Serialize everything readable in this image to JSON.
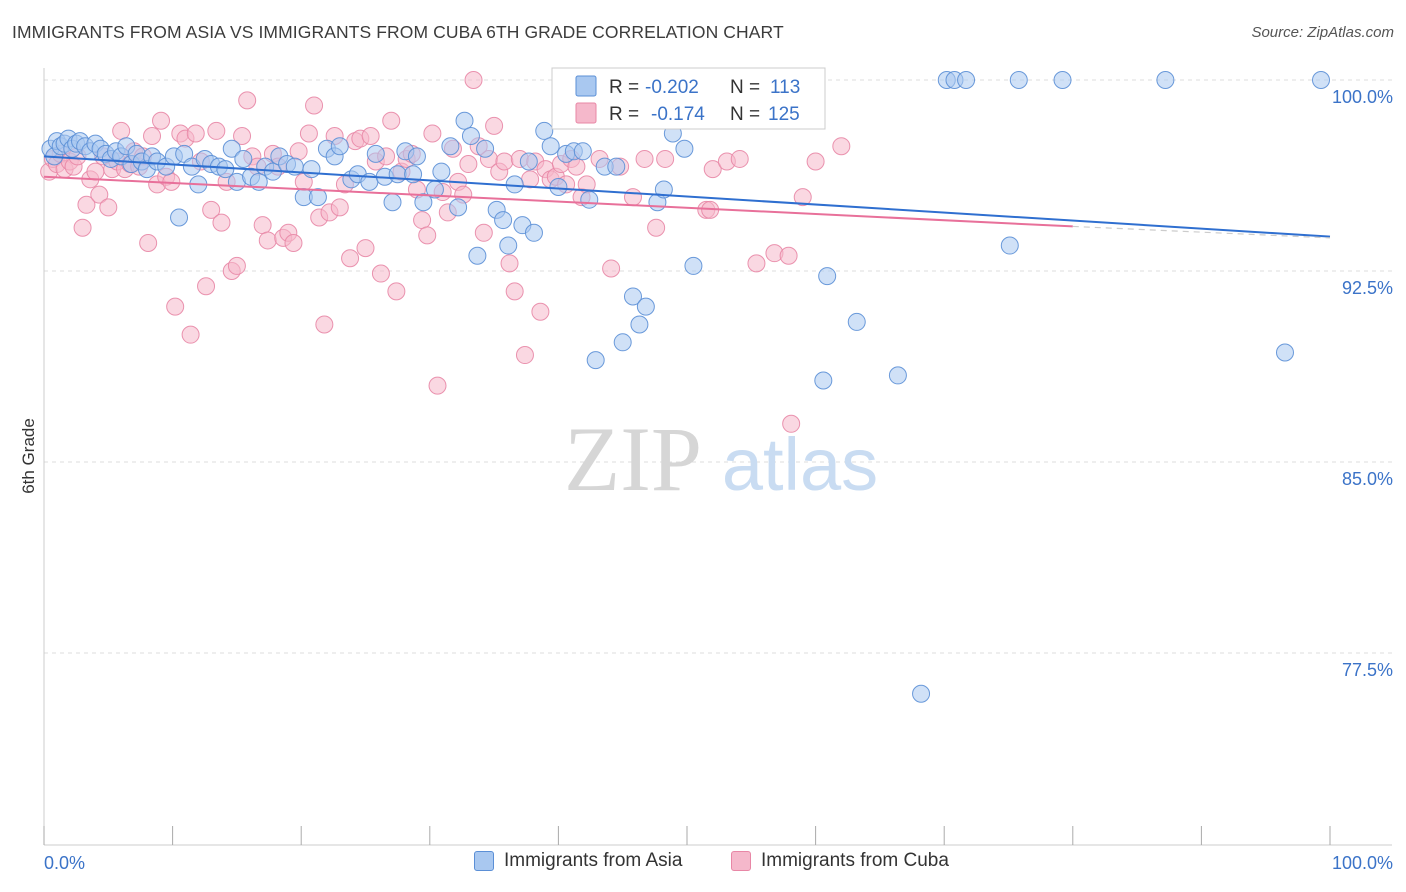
{
  "header": {
    "title": "IMMIGRANTS FROM ASIA VS IMMIGRANTS FROM CUBA 6TH GRADE CORRELATION CHART",
    "source": "Source: ZipAtlas.com"
  },
  "watermark": {
    "zip": "ZIP",
    "atlas": "atlas"
  },
  "stats_box": {
    "asia": {
      "r_label": "R =",
      "r_value": "-0.202",
      "n_label": "N =",
      "n_value": "113"
    },
    "cuba": {
      "r_label": "R =",
      "r_value": "-0.174",
      "n_label": "N =",
      "n_value": "125"
    }
  },
  "colors": {
    "asia_fill": "#a9c8f0",
    "asia_stroke": "#5b8fd6",
    "asia_line": "#2f6fd0",
    "cuba_fill": "#f5b8cb",
    "cuba_stroke": "#e887a6",
    "cuba_line": "#e8709a",
    "value_text": "#3b73c8",
    "grid": "#dddddd"
  },
  "chart_data": {
    "type": "scatter",
    "title": "IMMIGRANTS FROM ASIA VS IMMIGRANTS FROM CUBA 6TH GRADE CORRELATION CHART",
    "xlabel": "",
    "ylabel": "6th Grade",
    "xlim": [
      0,
      100
    ],
    "ylim": [
      71.5,
      101.3
    ],
    "x_tick_labels": [
      "0.0%",
      "100.0%"
    ],
    "y_ticks": [
      100.0,
      92.5,
      85.0,
      77.5
    ],
    "y_tick_labels": [
      "100.0%",
      "92.5%",
      "85.0%",
      "77.5%"
    ],
    "grid": true,
    "legend_position": "bottom",
    "series": [
      {
        "name": "Immigrants from Asia",
        "r": -0.202,
        "n": 113,
        "trend": {
          "x0": 0,
          "y0": 97.0,
          "x1": 100,
          "y1": 93.85
        },
        "points": [
          [
            0.5,
            97.3
          ],
          [
            0.8,
            97.0
          ],
          [
            1.0,
            97.6
          ],
          [
            1.3,
            97.4
          ],
          [
            1.6,
            97.5
          ],
          [
            1.9,
            97.7
          ],
          [
            2.2,
            97.3
          ],
          [
            2.5,
            97.5
          ],
          [
            2.8,
            97.6
          ],
          [
            3.2,
            97.4
          ],
          [
            3.6,
            97.2
          ],
          [
            4.0,
            97.5
          ],
          [
            4.4,
            97.3
          ],
          [
            4.8,
            97.1
          ],
          [
            5.2,
            96.9
          ],
          [
            5.6,
            97.2
          ],
          [
            6.0,
            97.0
          ],
          [
            6.4,
            97.4
          ],
          [
            6.8,
            96.7
          ],
          [
            7.2,
            97.1
          ],
          [
            7.6,
            96.8
          ],
          [
            8.0,
            96.5
          ],
          [
            8.4,
            97.0
          ],
          [
            8.8,
            96.8
          ],
          [
            9.5,
            96.6
          ],
          [
            10.1,
            97.0
          ],
          [
            10.5,
            94.6
          ],
          [
            10.9,
            97.1
          ],
          [
            11.5,
            96.6
          ],
          [
            12.0,
            95.9
          ],
          [
            12.5,
            96.9
          ],
          [
            13.0,
            96.7
          ],
          [
            13.6,
            96.6
          ],
          [
            14.1,
            96.5
          ],
          [
            14.6,
            97.3
          ],
          [
            15.0,
            96.0
          ],
          [
            15.5,
            96.9
          ],
          [
            16.1,
            96.2
          ],
          [
            16.7,
            96.0
          ],
          [
            17.2,
            96.6
          ],
          [
            17.8,
            96.4
          ],
          [
            18.3,
            97.0
          ],
          [
            18.9,
            96.7
          ],
          [
            19.5,
            96.6
          ],
          [
            20.2,
            95.4
          ],
          [
            20.8,
            96.5
          ],
          [
            21.3,
            95.4
          ],
          [
            22.0,
            97.3
          ],
          [
            22.6,
            97.0
          ],
          [
            23.0,
            97.4
          ],
          [
            23.9,
            96.1
          ],
          [
            24.4,
            96.3
          ],
          [
            25.3,
            96.0
          ],
          [
            25.8,
            97.1
          ],
          [
            26.5,
            96.2
          ],
          [
            27.1,
            95.2
          ],
          [
            27.5,
            96.3
          ],
          [
            28.1,
            97.2
          ],
          [
            28.7,
            96.3
          ],
          [
            29.0,
            97.0
          ],
          [
            29.5,
            95.2
          ],
          [
            30.4,
            95.7
          ],
          [
            30.9,
            96.4
          ],
          [
            31.6,
            97.4
          ],
          [
            32.2,
            95.0
          ],
          [
            32.7,
            98.4
          ],
          [
            33.2,
            97.8
          ],
          [
            33.7,
            93.1
          ],
          [
            34.3,
            97.3
          ],
          [
            35.2,
            94.9
          ],
          [
            35.7,
            94.5
          ],
          [
            36.1,
            93.5
          ],
          [
            36.6,
            95.9
          ],
          [
            37.2,
            94.3
          ],
          [
            37.7,
            96.8
          ],
          [
            38.1,
            94.0
          ],
          [
            38.9,
            98.0
          ],
          [
            39.4,
            97.4
          ],
          [
            40.0,
            95.8
          ],
          [
            40.6,
            97.1
          ],
          [
            41.2,
            97.2
          ],
          [
            41.9,
            97.2
          ],
          [
            42.4,
            95.3
          ],
          [
            42.9,
            89.0
          ],
          [
            43.6,
            96.6
          ],
          [
            44.5,
            96.6
          ],
          [
            45.0,
            89.7
          ],
          [
            45.8,
            91.5
          ],
          [
            46.3,
            90.4
          ],
          [
            46.8,
            91.1
          ],
          [
            47.7,
            95.2
          ],
          [
            48.2,
            95.7
          ],
          [
            48.9,
            97.9
          ],
          [
            49.8,
            97.3
          ],
          [
            50.5,
            92.7
          ],
          [
            52.3,
            98.5
          ],
          [
            53.9,
            100.0
          ],
          [
            54.6,
            100.0
          ],
          [
            60.6,
            88.2
          ],
          [
            60.9,
            92.3
          ],
          [
            63.2,
            90.5
          ],
          [
            66.4,
            88.4
          ],
          [
            68.2,
            75.9
          ],
          [
            70.2,
            100.0
          ],
          [
            70.8,
            100.0
          ],
          [
            71.7,
            100.0
          ],
          [
            75.1,
            93.5
          ],
          [
            75.8,
            100.0
          ],
          [
            79.2,
            100.0
          ],
          [
            87.2,
            100.0
          ],
          [
            96.5,
            89.3
          ],
          [
            99.3,
            100.0
          ],
          [
            53.4,
            98.8
          ]
        ]
      },
      {
        "name": "Immigrants from Cuba",
        "r": -0.174,
        "n": 125,
        "trend": {
          "x0": 0,
          "y0": 96.2,
          "x1": 80,
          "y1": 94.25
        },
        "trend_dashed_to": {
          "x": 100,
          "y": 93.8
        },
        "points": [
          [
            0.4,
            96.4
          ],
          [
            0.7,
            96.9
          ],
          [
            1.0,
            96.7
          ],
          [
            1.3,
            97.1
          ],
          [
            1.6,
            96.5
          ],
          [
            2.0,
            96.8
          ],
          [
            2.3,
            96.6
          ],
          [
            2.6,
            97.0
          ],
          [
            3.0,
            94.2
          ],
          [
            3.3,
            95.1
          ],
          [
            3.6,
            96.1
          ],
          [
            4.0,
            96.4
          ],
          [
            4.3,
            95.5
          ],
          [
            4.6,
            97.0
          ],
          [
            5.0,
            95.0
          ],
          [
            5.3,
            96.5
          ],
          [
            5.7,
            96.8
          ],
          [
            6.0,
            98.0
          ],
          [
            6.3,
            96.5
          ],
          [
            6.7,
            96.7
          ],
          [
            7.0,
            97.2
          ],
          [
            7.4,
            96.6
          ],
          [
            7.7,
            97.0
          ],
          [
            8.1,
            93.6
          ],
          [
            8.4,
            97.8
          ],
          [
            8.8,
            95.9
          ],
          [
            9.1,
            98.4
          ],
          [
            9.5,
            96.2
          ],
          [
            9.9,
            96.0
          ],
          [
            10.2,
            91.1
          ],
          [
            10.6,
            97.9
          ],
          [
            11.0,
            97.7
          ],
          [
            11.4,
            90.0
          ],
          [
            11.8,
            97.9
          ],
          [
            12.2,
            96.8
          ],
          [
            12.6,
            91.9
          ],
          [
            13.0,
            94.9
          ],
          [
            13.4,
            98.0
          ],
          [
            13.8,
            94.4
          ],
          [
            14.2,
            96.0
          ],
          [
            14.6,
            92.5
          ],
          [
            15.0,
            92.7
          ],
          [
            15.4,
            97.8
          ],
          [
            15.8,
            99.2
          ],
          [
            16.2,
            97.0
          ],
          [
            16.6,
            96.6
          ],
          [
            17.0,
            94.3
          ],
          [
            17.4,
            93.7
          ],
          [
            17.8,
            97.1
          ],
          [
            18.2,
            96.6
          ],
          [
            18.6,
            93.8
          ],
          [
            19.0,
            94.0
          ],
          [
            19.4,
            93.6
          ],
          [
            19.8,
            97.2
          ],
          [
            20.2,
            96.0
          ],
          [
            20.6,
            97.9
          ],
          [
            21.0,
            99.0
          ],
          [
            21.4,
            94.6
          ],
          [
            21.8,
            90.4
          ],
          [
            22.2,
            94.8
          ],
          [
            22.6,
            97.8
          ],
          [
            23.0,
            95.0
          ],
          [
            23.4,
            95.9
          ],
          [
            23.8,
            93.0
          ],
          [
            24.2,
            97.6
          ],
          [
            24.6,
            97.7
          ],
          [
            25.0,
            93.4
          ],
          [
            25.4,
            97.8
          ],
          [
            25.8,
            96.8
          ],
          [
            26.2,
            92.4
          ],
          [
            26.6,
            97.0
          ],
          [
            27.0,
            98.4
          ],
          [
            27.4,
            91.7
          ],
          [
            27.8,
            96.4
          ],
          [
            28.2,
            96.9
          ],
          [
            28.6,
            97.1
          ],
          [
            29.0,
            95.7
          ],
          [
            29.4,
            94.5
          ],
          [
            29.8,
            93.9
          ],
          [
            30.2,
            97.9
          ],
          [
            30.6,
            88.0
          ],
          [
            31.0,
            95.6
          ],
          [
            31.4,
            94.8
          ],
          [
            31.8,
            97.3
          ],
          [
            32.2,
            96.0
          ],
          [
            32.6,
            95.5
          ],
          [
            33.0,
            96.7
          ],
          [
            33.4,
            100.0
          ],
          [
            33.8,
            97.4
          ],
          [
            34.2,
            94.0
          ],
          [
            34.6,
            96.9
          ],
          [
            35.0,
            98.2
          ],
          [
            35.4,
            96.4
          ],
          [
            35.8,
            96.8
          ],
          [
            36.2,
            92.8
          ],
          [
            36.6,
            91.7
          ],
          [
            37.0,
            96.9
          ],
          [
            37.4,
            89.2
          ],
          [
            37.8,
            96.1
          ],
          [
            38.2,
            96.8
          ],
          [
            38.6,
            90.9
          ],
          [
            39.0,
            96.5
          ],
          [
            39.4,
            96.1
          ],
          [
            39.8,
            96.2
          ],
          [
            40.2,
            96.7
          ],
          [
            40.6,
            95.9
          ],
          [
            41.0,
            96.9
          ],
          [
            41.4,
            96.6
          ],
          [
            41.8,
            95.4
          ],
          [
            42.2,
            95.9
          ],
          [
            43.2,
            96.9
          ],
          [
            44.1,
            92.6
          ],
          [
            44.8,
            96.6
          ],
          [
            45.8,
            95.4
          ],
          [
            46.7,
            96.9
          ],
          [
            47.6,
            94.2
          ],
          [
            48.3,
            96.9
          ],
          [
            51.5,
            94.9
          ],
          [
            51.8,
            94.9
          ],
          [
            52.0,
            96.5
          ],
          [
            53.1,
            96.8
          ],
          [
            54.1,
            96.9
          ],
          [
            55.4,
            92.8
          ],
          [
            56.8,
            93.2
          ],
          [
            57.9,
            93.1
          ],
          [
            58.1,
            86.5
          ],
          [
            59.0,
            95.4
          ],
          [
            60.0,
            96.8
          ],
          [
            62.0,
            97.4
          ]
        ]
      }
    ]
  },
  "legend": {
    "asia_label": "Immigrants from Asia",
    "cuba_label": "Immigrants from Cuba"
  }
}
